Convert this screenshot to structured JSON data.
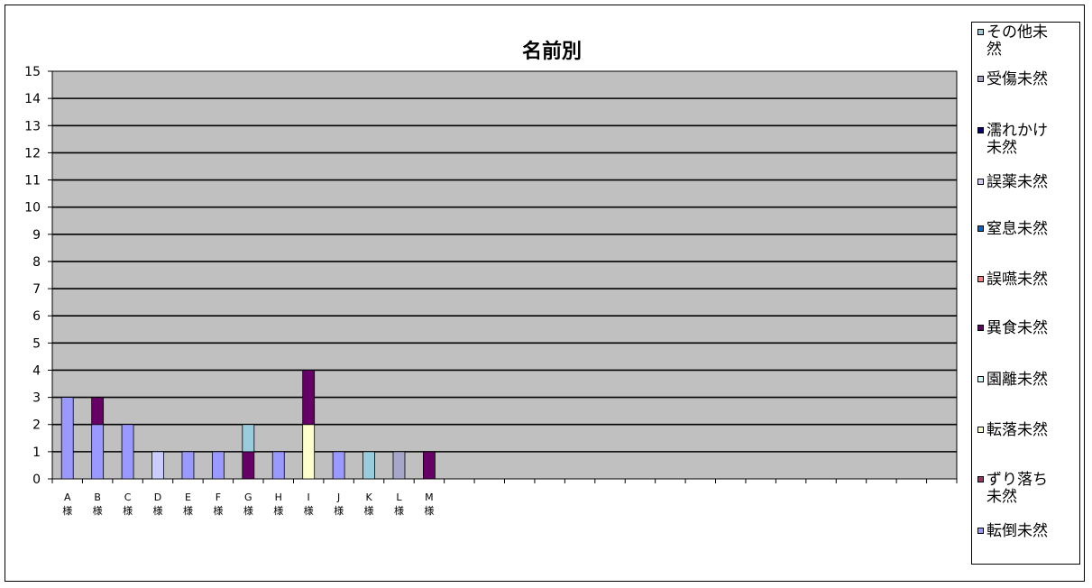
{
  "chart_data": {
    "type": "bar",
    "stacked": true,
    "title": "名前別",
    "xlabel": "",
    "ylabel": "",
    "ylim": [
      0,
      15
    ],
    "yticks": [
      0,
      1,
      2,
      3,
      4,
      5,
      6,
      7,
      8,
      9,
      10,
      11,
      12,
      13,
      14,
      15
    ],
    "grid": true,
    "legend_position": "right",
    "category_slots": 30,
    "categories": [
      {
        "top": "A",
        "bottom": "様"
      },
      {
        "top": "B",
        "bottom": "様"
      },
      {
        "top": "C",
        "bottom": "様"
      },
      {
        "top": "D",
        "bottom": "様"
      },
      {
        "top": "E",
        "bottom": "様"
      },
      {
        "top": "F",
        "bottom": "様"
      },
      {
        "top": "G",
        "bottom": "様"
      },
      {
        "top": "H",
        "bottom": "様"
      },
      {
        "top": "I",
        "bottom": "様"
      },
      {
        "top": "J",
        "bottom": "様"
      },
      {
        "top": "K",
        "bottom": "様"
      },
      {
        "top": "L",
        "bottom": "様"
      },
      {
        "top": "M",
        "bottom": "様"
      }
    ],
    "series": [
      {
        "name": "転倒未然",
        "color": "#9999ff",
        "values": [
          3,
          2,
          2,
          0,
          1,
          1,
          0,
          1,
          0,
          1,
          0,
          0,
          0
        ]
      },
      {
        "name": "ずり落ち未然",
        "color": "#993366",
        "values": [
          0,
          0,
          0,
          0,
          0,
          0,
          0,
          0,
          0,
          0,
          0,
          0,
          0
        ]
      },
      {
        "name": "転落未然",
        "color": "#ffffcc",
        "values": [
          0,
          0,
          0,
          0,
          0,
          0,
          0,
          0,
          2,
          0,
          0,
          0,
          0
        ]
      },
      {
        "name": "園離未然",
        "color": "#ccffff",
        "values": [
          0,
          0,
          0,
          0,
          0,
          0,
          0,
          0,
          0,
          0,
          0,
          0,
          0
        ]
      },
      {
        "name": "異食未然",
        "color": "#660066",
        "values": [
          0,
          1,
          0,
          0,
          0,
          0,
          1,
          0,
          2,
          0,
          0,
          0,
          1
        ]
      },
      {
        "name": "誤嚥未然",
        "color": "#ff8080",
        "values": [
          0,
          0,
          0,
          0,
          0,
          0,
          0,
          0,
          0,
          0,
          0,
          0,
          0
        ]
      },
      {
        "name": "窒息未然",
        "color": "#0066cc",
        "values": [
          0,
          0,
          0,
          0,
          0,
          0,
          0,
          0,
          0,
          0,
          0,
          0,
          0
        ]
      },
      {
        "name": "誤薬未然",
        "color": "#ccccff",
        "values": [
          0,
          0,
          0,
          1,
          0,
          0,
          0,
          0,
          0,
          0,
          0,
          0,
          0
        ]
      },
      {
        "name": "濡れかけ未然",
        "color": "#000080",
        "values": [
          0,
          0,
          0,
          0,
          0,
          0,
          0,
          0,
          0,
          0,
          0,
          0,
          0
        ]
      },
      {
        "name": "受傷未然",
        "color": "#a6a6c8",
        "values": [
          0,
          0,
          0,
          0,
          0,
          0,
          0,
          0,
          0,
          0,
          0,
          1,
          0
        ]
      },
      {
        "name": "その他未然",
        "color": "#99ccdd",
        "values": [
          0,
          0,
          0,
          0,
          0,
          0,
          1,
          0,
          0,
          0,
          1,
          0,
          0
        ]
      }
    ],
    "legend_order": [
      {
        "name": "その他未然",
        "lines": [
          "その他未",
          "然"
        ]
      },
      {
        "name": "受傷未然",
        "lines": [
          "受傷未然"
        ]
      },
      {
        "name": "濡れかけ未然",
        "lines": [
          "濡れかけ",
          "未然"
        ]
      },
      {
        "name": "誤薬未然",
        "lines": [
          "誤薬未然"
        ]
      },
      {
        "name": "窒息未然",
        "lines": [
          "窒息未然"
        ]
      },
      {
        "name": "誤嚥未然",
        "lines": [
          "誤嚥未然"
        ]
      },
      {
        "name": "異食未然",
        "lines": [
          "異食未然"
        ]
      },
      {
        "name": "園離未然",
        "lines": [
          "園離未然"
        ]
      },
      {
        "name": "転落未然",
        "lines": [
          "転落未然"
        ]
      },
      {
        "name": "ずり落ち未然",
        "lines": [
          "ずり落ち",
          "未然"
        ]
      },
      {
        "name": "転倒未然",
        "lines": [
          "転倒未然"
        ]
      }
    ]
  },
  "colors": {
    "plot_background": "#c0c0c0",
    "gridline": "#000000"
  }
}
